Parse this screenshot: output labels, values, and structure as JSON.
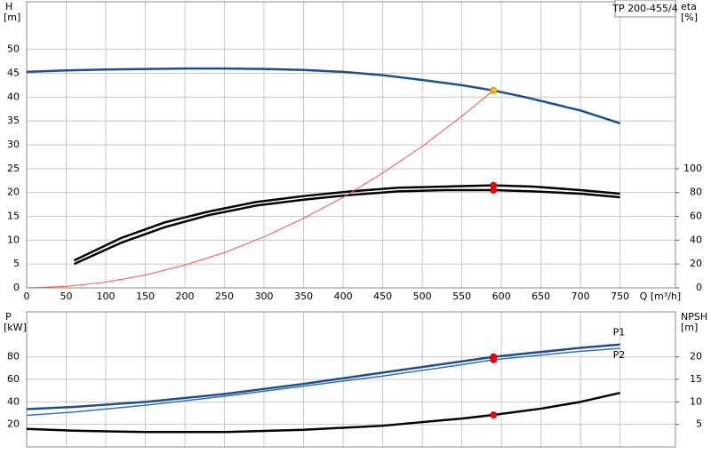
{
  "chart_data": [
    {
      "type": "line",
      "title": "TP 200-455/4",
      "ylabel": "H",
      "yunit": "[m]",
      "y2label": "eta",
      "y2unit": "[%]",
      "xlabel": "Q [m³/h]",
      "xlim": [
        0,
        820
      ],
      "xticks": [
        0,
        50,
        100,
        150,
        200,
        250,
        300,
        350,
        400,
        450,
        500,
        550,
        600,
        650,
        700,
        750
      ],
      "ylim": [
        0,
        60
      ],
      "yticks": [
        0,
        5,
        10,
        15,
        20,
        25,
        30,
        35,
        40,
        45,
        50
      ],
      "y2lim": [
        0,
        240
      ],
      "y2ticks": [
        0,
        20,
        40,
        60,
        80,
        100
      ],
      "grid": true,
      "xtick_labels": true,
      "series": [
        {
          "color": "#1f4e8c",
          "width": 2.5,
          "x": [
            0,
            50,
            100,
            200,
            250,
            300,
            350,
            400,
            450,
            500,
            550,
            590,
            630,
            700,
            750
          ],
          "values": [
            45.3,
            45.6,
            45.8,
            46.0,
            46.0,
            45.9,
            45.7,
            45.3,
            44.6,
            43.6,
            42.5,
            41.4,
            40.0,
            37.2,
            34.5
          ],
          "marker": {
            "x": 590,
            "y": 41.4,
            "color": "#ffcc00"
          }
        },
        {
          "color": "#000000",
          "width": 2.5,
          "axis": "y2",
          "x": [
            60,
            120,
            175,
            230,
            290,
            350,
            410,
            470,
            530,
            590,
            640,
            700,
            750
          ],
          "values": [
            23,
            42,
            55,
            64,
            72,
            77,
            81,
            84,
            85,
            86,
            85,
            82,
            79
          ],
          "marker": {
            "x": 590,
            "y": 86,
            "color": "#ff0000"
          }
        },
        {
          "color": "#000000",
          "width": 2.5,
          "axis": "y2",
          "x": [
            60,
            120,
            175,
            230,
            290,
            350,
            410,
            470,
            530,
            590,
            640,
            700,
            750
          ],
          "values": [
            20,
            38,
            51,
            61,
            69,
            74,
            78,
            81,
            82,
            82,
            81,
            79,
            76
          ],
          "marker": {
            "x": 590,
            "y": 82,
            "color": "#ff0000"
          }
        },
        {
          "color": "#ff5050",
          "width": 1,
          "x": [
            0,
            50,
            100,
            150,
            200,
            250,
            300,
            350,
            400,
            450,
            500,
            550,
            590
          ],
          "values": [
            0,
            0.3,
            1.2,
            2.7,
            4.8,
            7.4,
            10.7,
            14.6,
            19.0,
            24.1,
            29.7,
            36.0,
            41.4
          ]
        }
      ]
    },
    {
      "type": "line",
      "ylabel": "P",
      "yunit": "[kW]",
      "y2label": "NPSH",
      "y2unit": "[m]",
      "xlim": [
        0,
        820
      ],
      "xticks": [
        0,
        50,
        100,
        150,
        200,
        250,
        300,
        350,
        400,
        450,
        500,
        550,
        600,
        650,
        700,
        750
      ],
      "ylim": [
        0,
        120
      ],
      "yticks": [
        20,
        40,
        60,
        80
      ],
      "y2lim": [
        0,
        30
      ],
      "y2ticks": [
        5,
        10,
        15,
        20
      ],
      "grid": true,
      "xtick_labels": false,
      "series": [
        {
          "name": "P1",
          "color": "#1f4e8c",
          "width": 2.5,
          "x": [
            0,
            60,
            150,
            250,
            350,
            450,
            550,
            590,
            700,
            750
          ],
          "values": [
            33.6,
            35.5,
            40,
            47,
            56,
            66,
            76,
            80,
            88,
            91
          ],
          "marker": {
            "x": 590,
            "y": 80,
            "color": "#ff0000"
          }
        },
        {
          "name": "P2",
          "color": "#3a6fb0",
          "width": 1.5,
          "x": [
            0,
            60,
            150,
            250,
            350,
            450,
            550,
            590,
            700,
            750
          ],
          "values": [
            28,
            31,
            37,
            45,
            54,
            63,
            73,
            77.5,
            85,
            87.5
          ],
          "marker": {
            "x": 590,
            "y": 77.5,
            "color": "#ff0000"
          }
        },
        {
          "color": "#000000",
          "width": 2.5,
          "axis": "y2",
          "x": [
            0,
            60,
            150,
            250,
            350,
            450,
            550,
            590,
            650,
            700,
            750
          ],
          "values": [
            4,
            3.6,
            3.3,
            3.3,
            3.8,
            4.7,
            6.3,
            7.1,
            8.5,
            10,
            12
          ],
          "marker": {
            "x": 590,
            "y": 7.1,
            "color": "#ff0000"
          }
        }
      ]
    }
  ]
}
